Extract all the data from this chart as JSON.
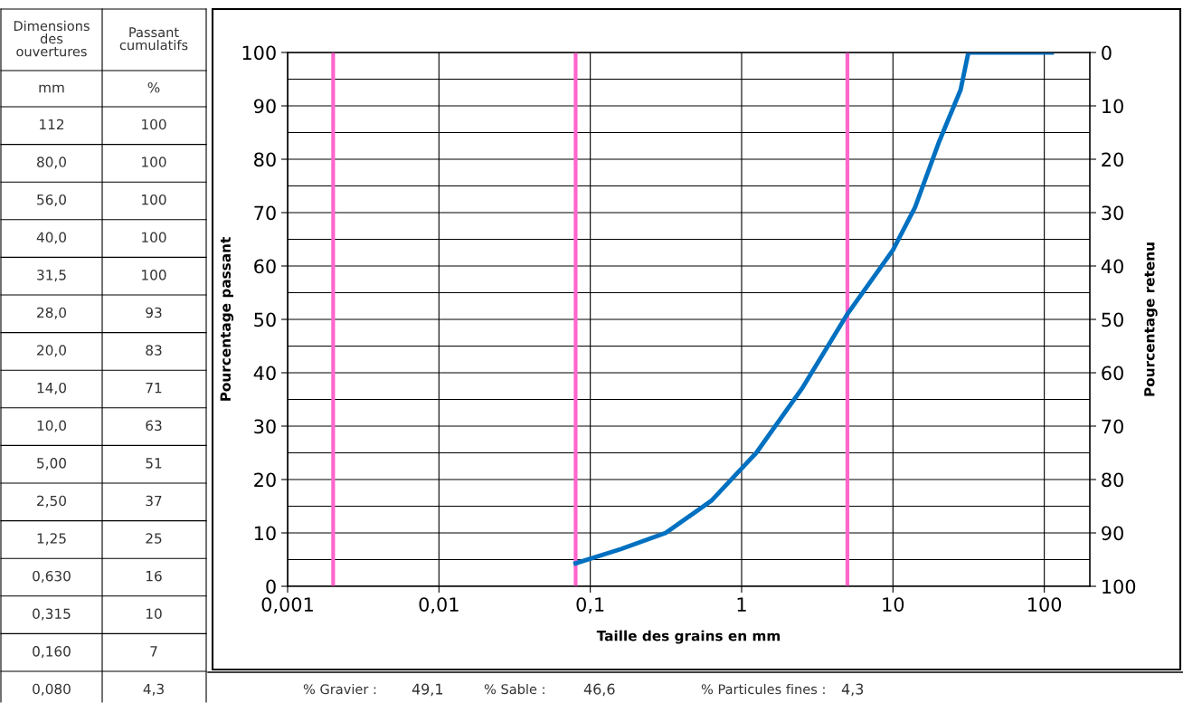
{
  "chart_data": [
    {
      "type": "other",
      "annotations": [
        "Dimensions des ouvertures",
        "Passant cumulatifs",
        "mm",
        "%",
        "112",
        "100",
        "80,0",
        "100",
        "56,0",
        "100",
        "40,0",
        "100",
        "31,5",
        "100",
        "28,0",
        "93",
        "20,0",
        "83",
        "14,0",
        "71",
        "10,0",
        "63",
        "5,00",
        "51",
        "2,50",
        "37",
        "1,25",
        "25",
        "0,630",
        "16",
        "0,315",
        "10",
        "0,160",
        "7",
        "0,080",
        "4,3"
      ]
    },
    {
      "type": "line",
      "xlabel": "Taille des grains en mm",
      "ylabel": "Pourcentage passant",
      "y2label": "Pourcentage retenu",
      "x": [
        112,
        80.0,
        56.0,
        40.0,
        31.5,
        28.0,
        20.0,
        14.0,
        10.0,
        5.0,
        2.5,
        1.25,
        0.63,
        0.315,
        0.16,
        0.08
      ],
      "series": [
        {
          "color": "#0070c0",
          "values": [
            100,
            100,
            100,
            100,
            100,
            93,
            83,
            71,
            63,
            51,
            37,
            25,
            16,
            10,
            7,
            4.3
          ]
        }
      ],
      "log": "x",
      "xlim": [
        0.001,
        200
      ],
      "xticks": [
        {
          "value": 0.001,
          "label": "0,001"
        },
        {
          "value": 0.01,
          "label": "0,01"
        },
        {
          "value": 0.1,
          "label": "0,1"
        },
        1,
        10,
        100
      ],
      "ylim": [
        0,
        100
      ],
      "yticks": [
        0,
        10,
        20,
        30,
        40,
        50,
        60,
        70,
        80,
        90,
        100
      ],
      "y2lim": [
        100,
        0
      ],
      "y2ticks": [
        0,
        10,
        20,
        30,
        40,
        50,
        60,
        70,
        80,
        90,
        100
      ],
      "ref_lines": [
        {
          "axis": "x",
          "value": 0.002,
          "color": "#ff66cc"
        },
        {
          "axis": "x",
          "value": 0.08,
          "color": "#ff66cc"
        },
        {
          "axis": "x",
          "value": 5,
          "color": "#ff66cc"
        }
      ],
      "grid": true,
      "marker": "none",
      "line_style": "solid",
      "annotations": [
        "% Gravier :",
        "49,1",
        "% Sable :",
        "46,6",
        "% Particules fines :",
        "4,3"
      ]
    }
  ]
}
